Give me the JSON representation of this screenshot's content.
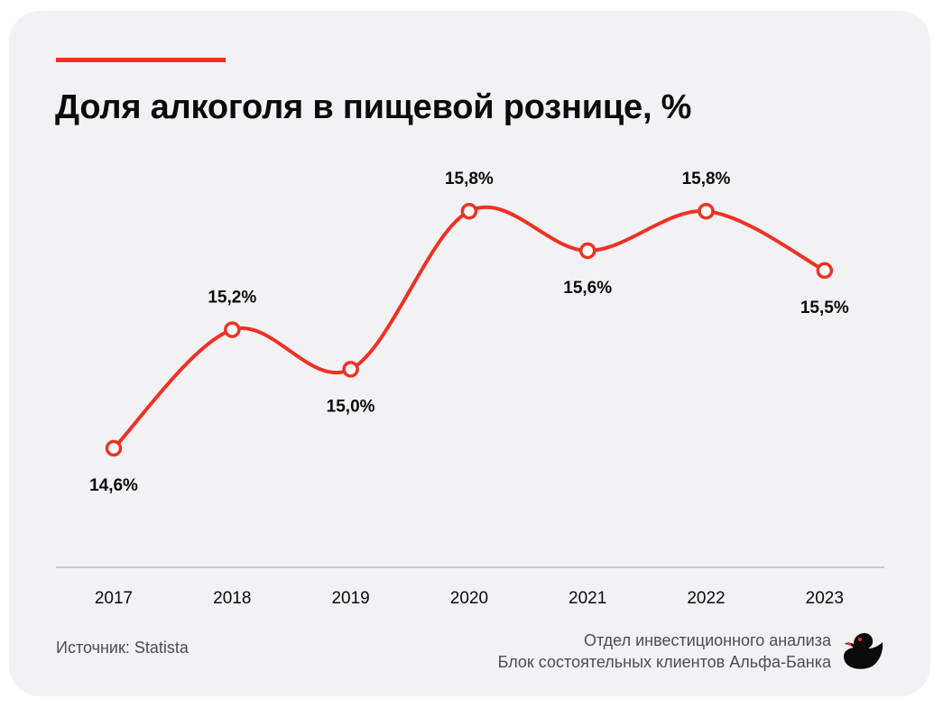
{
  "header": {
    "title": "Доля алкоголя в пищевой рознице, %"
  },
  "footer": {
    "source": "Источник: Statista",
    "dept_line1": "Отдел инвестиционного анализа",
    "dept_line2": "Блок состоятельных клиентов Альфа-Банка"
  },
  "logo": {
    "icon": "duck-logo-icon"
  },
  "colors": {
    "accent": "#ef3124",
    "background": "#f2f1f4",
    "text": "#0b0b0b",
    "muted": "#4d4d50",
    "axis": "#c9c9cd"
  },
  "chart_data": {
    "type": "line",
    "title": "Доля алкоголя в пищевой рознице, %",
    "xlabel": "",
    "ylabel": "",
    "x": [
      "2017",
      "2018",
      "2019",
      "2020",
      "2021",
      "2022",
      "2023"
    ],
    "values": [
      14.6,
      15.2,
      15.0,
      15.8,
      15.6,
      15.8,
      15.5
    ],
    "labels": [
      "14,6%",
      "15,2%",
      "15,0%",
      "15,8%",
      "15,6%",
      "15,8%",
      "15,5%"
    ],
    "label_position": [
      "below",
      "above",
      "below",
      "above",
      "below",
      "above",
      "below"
    ],
    "grid": false,
    "legend": "none",
    "smooth": true
  }
}
